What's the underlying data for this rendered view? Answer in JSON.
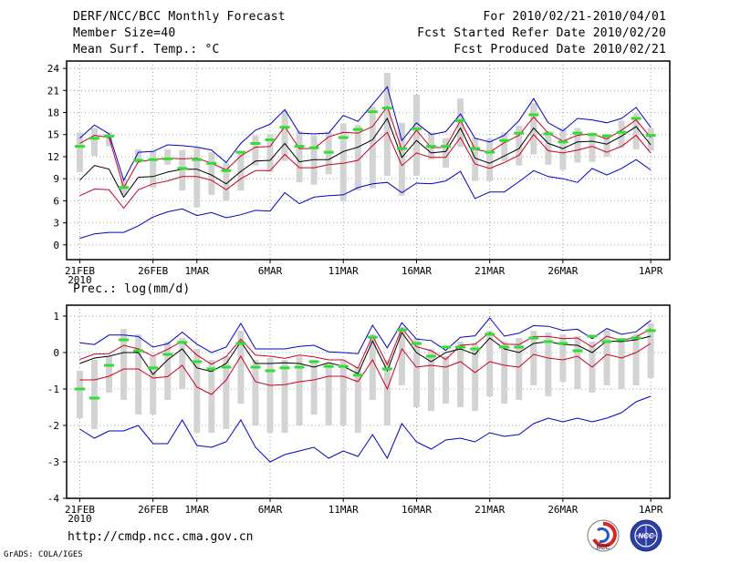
{
  "header": {
    "title": "DERF/NCC/BCC Monthly Forecast",
    "member_size": "Member Size=40",
    "variable1": "Mean Surf. Temp.: °C",
    "period": "For 2010/02/21-2010/04/01",
    "started": "Fcst Started Refer Date 2010/02/20",
    "produced": "Fcst Produced Date 2010/02/21"
  },
  "footer": {
    "url": "http://cmdp.ncc.cma.gov.cn",
    "grads": "GrADS: COLA/IGES",
    "logo1_text": "BCC",
    "logo2_text": "NCC"
  },
  "colors": {
    "max_min": "#0000cc",
    "perc": "#cc0022",
    "mean": "#000000",
    "bar": "#d3d3d3",
    "median": "#33dd33"
  },
  "chart_data": [
    {
      "type": "box-line",
      "title": "Mean Surf. Temp.: °C",
      "xlabel": "",
      "ylabel": "",
      "ylim": [
        -2,
        25
      ],
      "yticks": [
        0,
        3,
        6,
        9,
        12,
        15,
        18,
        21,
        24
      ],
      "xticks": [
        {
          "label": "21FEB",
          "day": 1,
          "sub": "2010"
        },
        {
          "label": "26FEB",
          "day": 6
        },
        {
          "label": "1MAR",
          "day": 9
        },
        {
          "label": "6MAR",
          "day": 14
        },
        {
          "label": "11MAR",
          "day": 19
        },
        {
          "label": "16MAR",
          "day": 24
        },
        {
          "label": "21MAR",
          "day": 29
        },
        {
          "label": "26MAR",
          "day": 34
        },
        {
          "label": "1APR",
          "day": 40
        }
      ],
      "days": [
        1,
        2,
        3,
        4,
        5,
        6,
        7,
        8,
        9,
        10,
        11,
        12,
        13,
        14,
        15,
        16,
        17,
        18,
        19,
        20,
        21,
        22,
        23,
        24,
        25,
        26,
        27,
        28,
        29,
        30,
        31,
        32,
        33,
        34,
        35,
        36,
        37,
        38,
        39,
        40
      ],
      "series": [
        {
          "name": "max",
          "values": [
            14.5,
            16.3,
            15.1,
            8.8,
            12.6,
            12.7,
            13.6,
            13.5,
            13.3,
            12.9,
            11.2,
            13.8,
            15.6,
            16.4,
            18.4,
            15.2,
            15.1,
            15.2,
            17.6,
            16.8,
            19.1,
            21.5,
            14.2,
            16.6,
            15.0,
            15.4,
            17.8,
            14.5,
            14.0,
            14.9,
            16.9,
            19.9,
            16.6,
            15.5,
            17.2,
            17.0,
            16.6,
            17.2,
            18.7,
            16.0
          ]
        },
        {
          "name": "upper",
          "values": [
            13.8,
            14.9,
            14.6,
            7.8,
            11.3,
            11.6,
            11.8,
            11.7,
            11.8,
            11.1,
            10.2,
            12.1,
            13.3,
            13.4,
            16.1,
            13.1,
            13.1,
            14.7,
            15.3,
            15.2,
            16.1,
            18.8,
            12.9,
            15.6,
            13.2,
            13.3,
            16.9,
            13.0,
            12.6,
            13.9,
            14.9,
            17.4,
            15.2,
            14.1,
            14.9,
            15.1,
            14.4,
            15.6,
            17.0,
            14.6
          ]
        },
        {
          "name": "mean",
          "values": [
            8.8,
            10.8,
            10.3,
            6.5,
            9.2,
            9.3,
            9.9,
            10.3,
            10.3,
            9.5,
            8.3,
            10.0,
            11.4,
            11.5,
            13.8,
            11.3,
            11.6,
            11.6,
            12.7,
            13.3,
            14.3,
            17.2,
            11.9,
            14.2,
            12.5,
            12.7,
            15.9,
            11.8,
            11.1,
            12.1,
            13.1,
            15.9,
            13.8,
            13.1,
            14.0,
            14.1,
            13.7,
            14.8,
            16.1,
            13.6
          ]
        },
        {
          "name": "lower",
          "values": [
            6.7,
            7.6,
            7.5,
            5.0,
            7.5,
            8.3,
            8.7,
            9.3,
            9.3,
            8.8,
            7.5,
            9.0,
            10.1,
            10.1,
            12.3,
            10.5,
            10.5,
            10.9,
            11.1,
            11.5,
            13.5,
            15.3,
            10.8,
            12.5,
            11.9,
            11.9,
            14.6,
            11.0,
            10.4,
            11.2,
            12.2,
            15.0,
            12.8,
            12.5,
            12.9,
            13.4,
            12.6,
            13.4,
            14.9,
            12.5
          ]
        },
        {
          "name": "min",
          "values": [
            0.9,
            1.5,
            1.7,
            1.7,
            2.6,
            3.8,
            4.5,
            4.9,
            4.0,
            4.4,
            3.7,
            4.1,
            4.7,
            4.6,
            7.1,
            5.6,
            6.5,
            6.7,
            6.8,
            7.8,
            8.3,
            8.5,
            7.1,
            8.4,
            8.3,
            8.7,
            10.0,
            6.3,
            7.2,
            7.2,
            8.6,
            10.1,
            9.3,
            9.0,
            8.5,
            10.4,
            9.5,
            10.4,
            11.6,
            10.2
          ]
        }
      ],
      "bars": {
        "high": [
          15.3,
          15.9,
          15.3,
          9.0,
          13.0,
          12.8,
          13.0,
          12.9,
          13.2,
          12.6,
          11.2,
          12.4,
          14.9,
          15.1,
          18.2,
          15.5,
          14.9,
          15.4,
          16.5,
          16.3,
          18.8,
          23.4,
          16.6,
          20.4,
          15.3,
          14.5,
          19.9,
          14.6,
          14.5,
          15.3,
          16.2,
          19.3,
          15.5,
          15.9,
          15.9,
          15.3,
          15.1,
          16.9,
          17.9,
          15.9
        ],
        "low": [
          9.9,
          12.1,
          13.4,
          6.8,
          11.1,
          7.8,
          10.9,
          7.4,
          5.1,
          6.8,
          6.0,
          7.4,
          10.8,
          9.9,
          11.4,
          8.5,
          8.2,
          9.6,
          5.9,
          7.4,
          7.7,
          9.4,
          6.7,
          9.4,
          11.6,
          10.5,
          13.3,
          8.7,
          8.7,
          11.4,
          10.8,
          12.3,
          10.9,
          10.2,
          11.2,
          11.3,
          12.0,
          13.2,
          13.0,
          12.8
        ],
        "median": [
          13.4,
          14.5,
          14.8,
          7.8,
          11.5,
          11.6,
          11.7,
          10.4,
          11.6,
          11.1,
          10.1,
          12.6,
          13.8,
          14.3,
          16.0,
          13.4,
          13.2,
          12.6,
          14.6,
          15.7,
          18.1,
          18.6,
          13.1,
          15.8,
          13.4,
          13.4,
          16.9,
          13.1,
          12.6,
          14.2,
          15.2,
          17.7,
          15.1,
          14.0,
          15.2,
          15.0,
          14.8,
          15.3,
          17.2,
          14.9
        ]
      }
    },
    {
      "type": "box-line",
      "title": "Prec.: log(mm/d)",
      "xlabel": "",
      "ylabel": "",
      "ylim": [
        -4,
        1.3
      ],
      "yticks": [
        -4,
        -3,
        -2,
        -1,
        0,
        1
      ],
      "xticks": [
        {
          "label": "21FEB",
          "day": 1,
          "sub": "2010"
        },
        {
          "label": "26FEB",
          "day": 6
        },
        {
          "label": "1MAR",
          "day": 9
        },
        {
          "label": "6MAR",
          "day": 14
        },
        {
          "label": "11MAR",
          "day": 19
        },
        {
          "label": "16MAR",
          "day": 24
        },
        {
          "label": "21MAR",
          "day": 29
        },
        {
          "label": "26MAR",
          "day": 34
        },
        {
          "label": "1APR",
          "day": 40
        }
      ],
      "days": [
        1,
        2,
        3,
        4,
        5,
        6,
        7,
        8,
        9,
        10,
        11,
        12,
        13,
        14,
        15,
        16,
        17,
        18,
        19,
        20,
        21,
        22,
        23,
        24,
        25,
        26,
        27,
        28,
        29,
        30,
        31,
        32,
        33,
        34,
        35,
        36,
        37,
        38,
        39,
        40
      ],
      "series": [
        {
          "name": "max",
          "values": [
            0.27,
            0.22,
            0.48,
            0.48,
            0.44,
            0.15,
            0.24,
            0.56,
            0.23,
            0.0,
            0.15,
            0.8,
            0.1,
            0.1,
            0.1,
            0.17,
            0.2,
            0.02,
            0.0,
            -0.03,
            0.75,
            0.13,
            0.82,
            0.37,
            0.33,
            0.06,
            0.42,
            0.46,
            0.95,
            0.45,
            0.53,
            0.74,
            0.72,
            0.61,
            0.64,
            0.38,
            0.66,
            0.5,
            0.57,
            0.88
          ]
        },
        {
          "name": "upper",
          "values": [
            -0.19,
            -0.04,
            -0.03,
            0.2,
            0.1,
            -0.1,
            0.09,
            0.31,
            -0.07,
            -0.32,
            -0.11,
            0.37,
            -0.07,
            -0.1,
            -0.16,
            -0.07,
            -0.12,
            -0.2,
            -0.2,
            -0.43,
            0.46,
            -0.33,
            0.67,
            0.16,
            0.05,
            -0.19,
            0.2,
            0.23,
            0.55,
            0.23,
            0.22,
            0.44,
            0.44,
            0.38,
            0.4,
            0.15,
            0.45,
            0.33,
            0.43,
            0.65
          ]
        },
        {
          "name": "mean",
          "values": [
            -0.3,
            -0.15,
            -0.1,
            0.0,
            0.0,
            -0.6,
            -0.2,
            0.1,
            -0.42,
            -0.52,
            -0.3,
            0.3,
            -0.3,
            -0.3,
            -0.28,
            -0.3,
            -0.4,
            -0.28,
            -0.38,
            -0.58,
            0.32,
            -0.5,
            0.55,
            0.0,
            -0.25,
            0.0,
            0.1,
            -0.05,
            0.4,
            0.1,
            0.0,
            0.25,
            0.3,
            0.22,
            0.2,
            0.0,
            0.32,
            0.3,
            0.35,
            0.45
          ]
        },
        {
          "name": "lower",
          "values": [
            -0.75,
            -0.75,
            -0.65,
            -0.45,
            -0.45,
            -0.7,
            -0.66,
            -0.35,
            -0.95,
            -1.15,
            -0.75,
            -0.1,
            -0.8,
            -0.9,
            -0.88,
            -0.8,
            -0.75,
            -0.65,
            -0.65,
            -0.8,
            -0.2,
            -1.0,
            0.1,
            -0.4,
            -0.35,
            -0.4,
            -0.25,
            -0.55,
            -0.25,
            -0.35,
            -0.4,
            -0.05,
            -0.15,
            -0.2,
            -0.1,
            -0.4,
            -0.05,
            -0.15,
            0.0,
            0.25
          ]
        },
        {
          "name": "min",
          "values": [
            -2.1,
            -2.35,
            -2.15,
            -2.15,
            -2.0,
            -2.5,
            -2.5,
            -1.85,
            -2.55,
            -2.6,
            -2.45,
            -1.85,
            -2.6,
            -3.0,
            -2.8,
            -2.7,
            -2.6,
            -2.9,
            -2.7,
            -2.85,
            -2.25,
            -2.9,
            -1.95,
            -2.45,
            -2.65,
            -2.4,
            -2.35,
            -2.45,
            -2.2,
            -2.3,
            -2.25,
            -1.95,
            -1.8,
            -1.9,
            -1.8,
            -1.9,
            -1.8,
            -1.65,
            -1.35,
            -1.2
          ]
        }
      ],
      "bars": {
        "high": [
          -0.5,
          -0.2,
          -0.1,
          0.65,
          0.5,
          -0.1,
          0.3,
          0.4,
          0.1,
          -0.2,
          -0.1,
          0.6,
          -0.2,
          -0.15,
          -0.2,
          -0.1,
          -0.2,
          -0.3,
          -0.2,
          -0.4,
          0.5,
          -0.2,
          0.7,
          0.4,
          0.1,
          -0.1,
          0.3,
          0.25,
          0.6,
          0.3,
          0.4,
          0.6,
          0.55,
          0.5,
          0.45,
          0.3,
          0.6,
          0.4,
          0.5,
          0.8
        ],
        "low": [
          -1.8,
          -2.1,
          -1.1,
          -1.3,
          -1.7,
          -1.7,
          -1.3,
          -1.0,
          -2.2,
          -2.2,
          -2.1,
          -1.4,
          -2.0,
          -2.2,
          -2.2,
          -2.0,
          -1.7,
          -2.0,
          -2.0,
          -2.2,
          -1.3,
          -2.0,
          -0.9,
          -1.5,
          -1.6,
          -1.4,
          -1.5,
          -1.6,
          -1.2,
          -1.4,
          -1.3,
          -0.9,
          -1.2,
          -0.8,
          -1.0,
          -1.1,
          -0.9,
          -1.0,
          -0.9,
          -0.7
        ],
        "median": [
          -1.0,
          -1.25,
          -0.35,
          0.35,
          0.05,
          -0.42,
          -0.05,
          0.28,
          -0.25,
          -0.45,
          -0.4,
          0.25,
          -0.4,
          -0.5,
          -0.42,
          -0.4,
          -0.25,
          -0.38,
          -0.38,
          -0.62,
          0.42,
          -0.45,
          0.62,
          0.25,
          -0.1,
          0.15,
          0.15,
          0.1,
          0.5,
          0.15,
          0.15,
          0.4,
          0.3,
          0.25,
          0.05,
          0.45,
          0.3,
          0.35,
          0.4,
          0.6
        ]
      }
    }
  ]
}
